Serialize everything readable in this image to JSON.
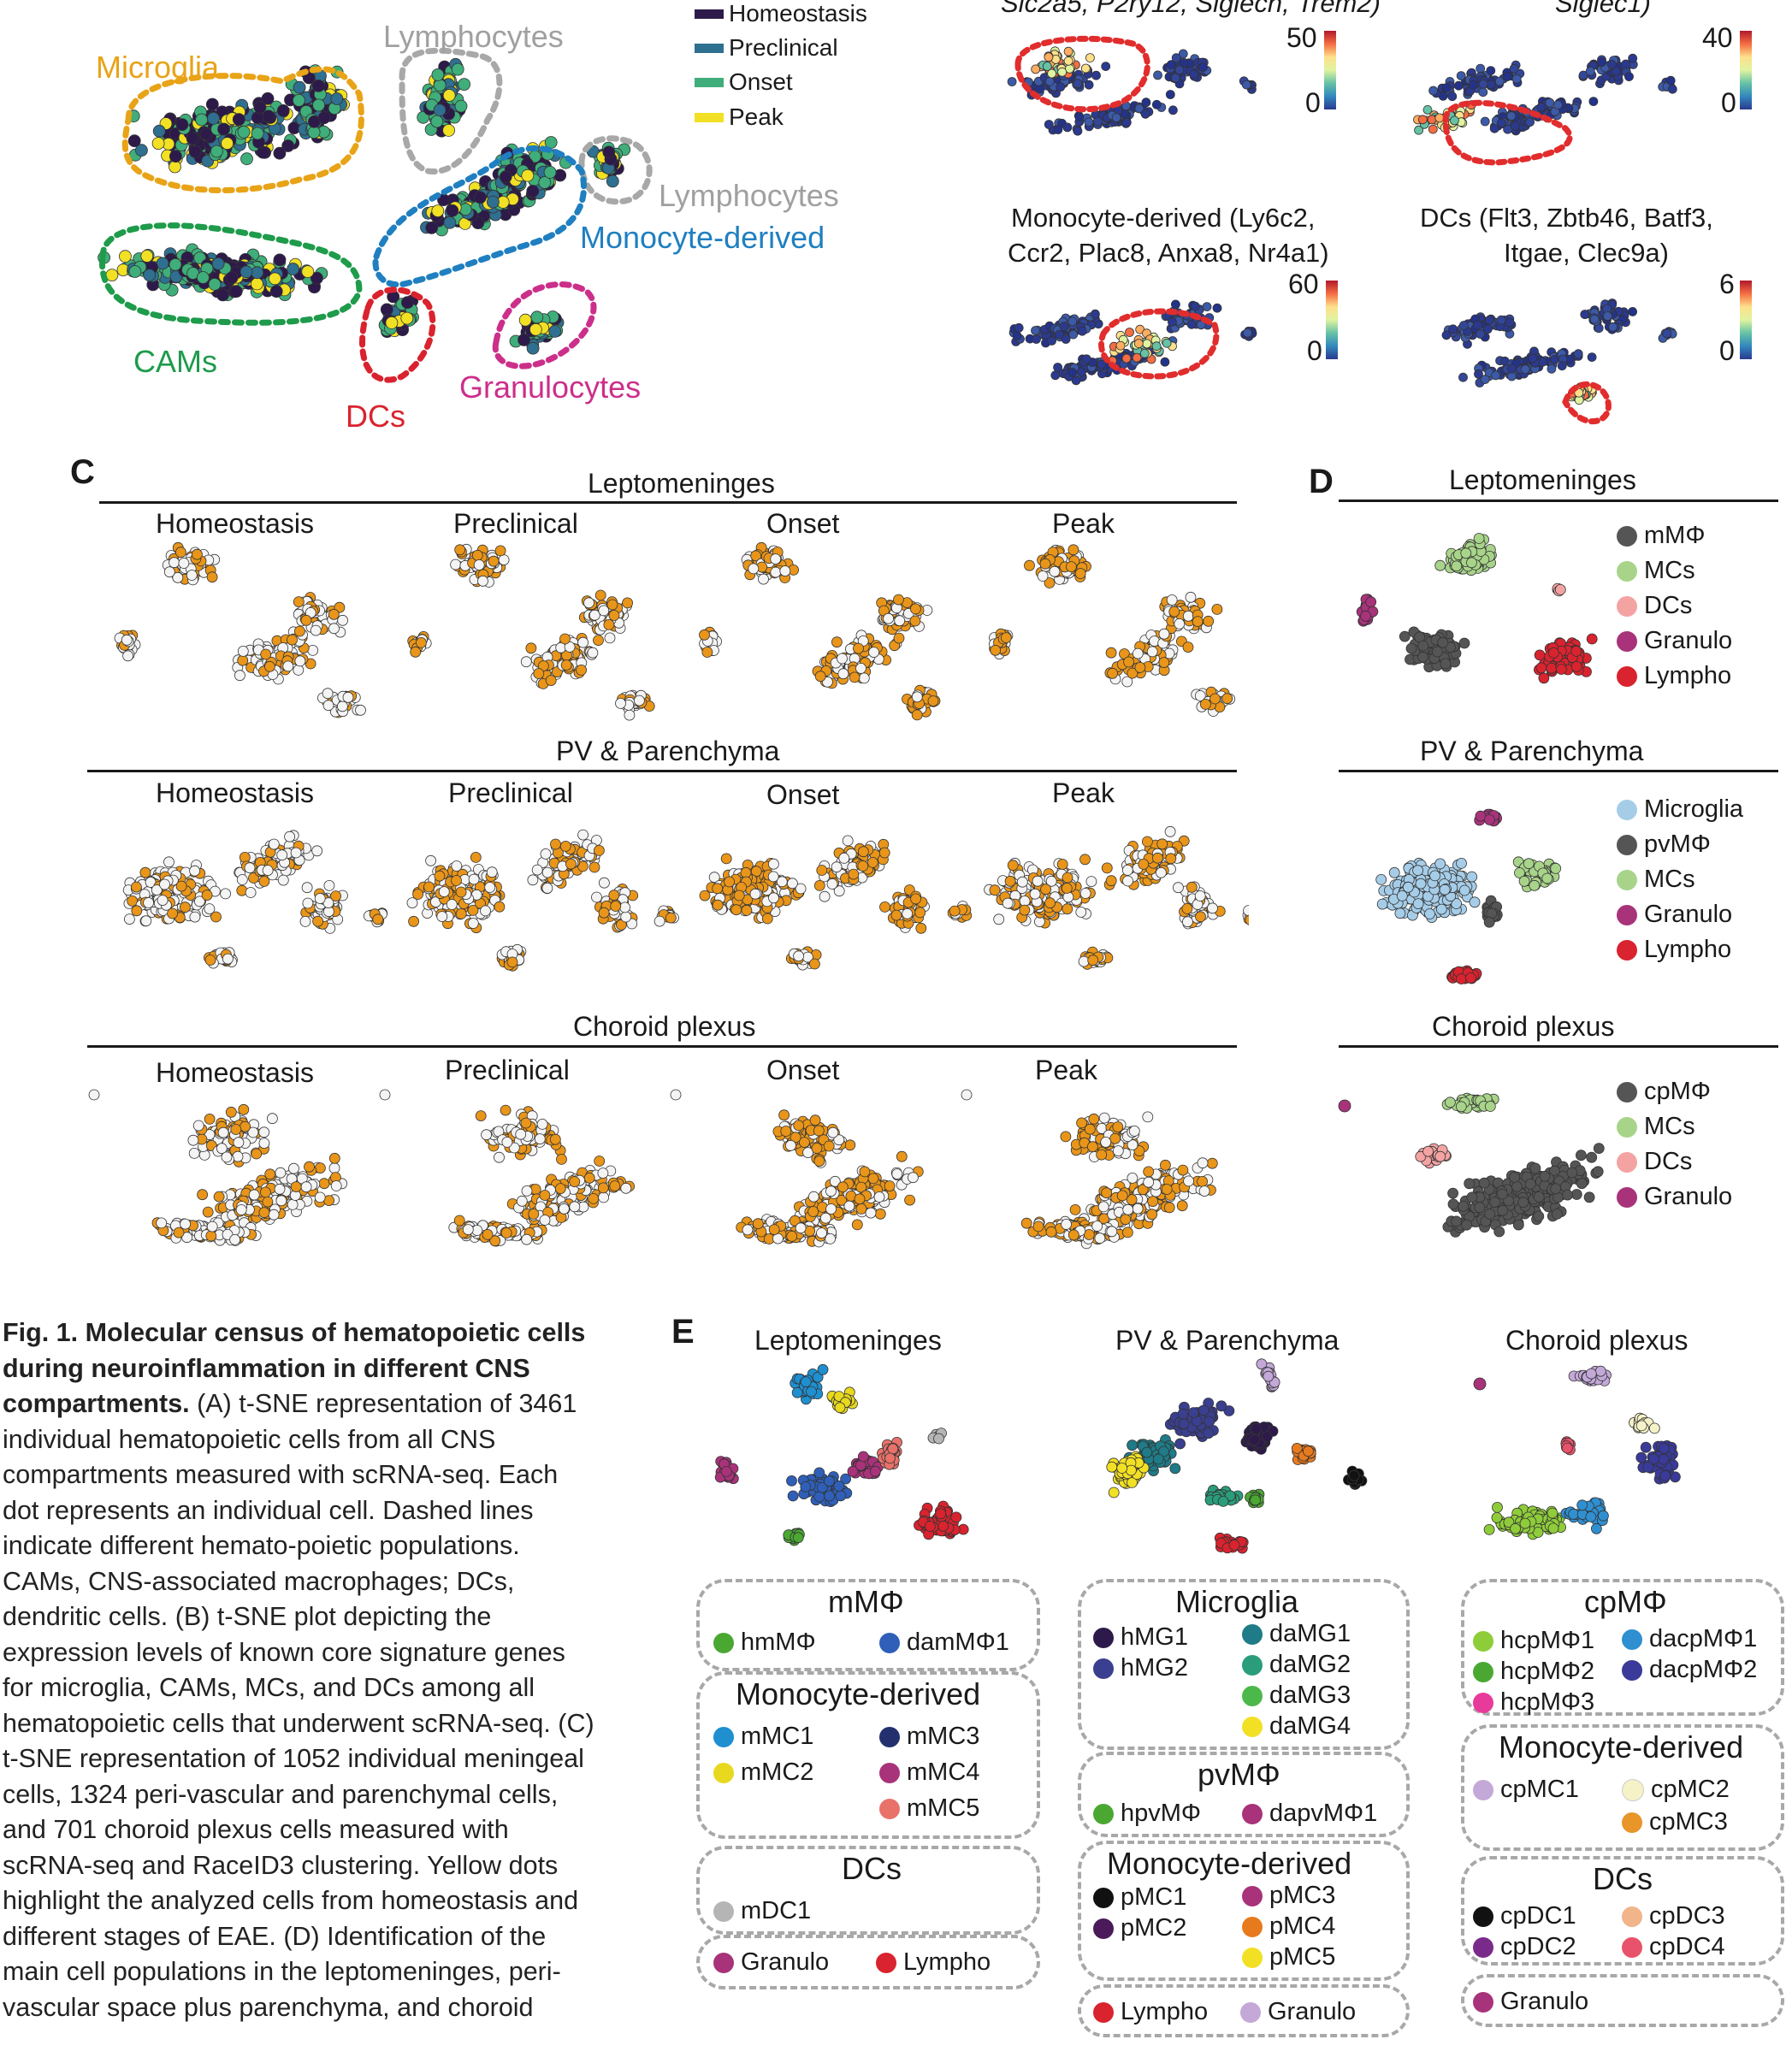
{
  "panelA": {
    "legend": [
      {
        "label": "Homeostasis",
        "color": "#2d1a4a"
      },
      {
        "label": "Preclinical",
        "color": "#2f6f8f"
      },
      {
        "label": "Onset",
        "color": "#3fae7a"
      },
      {
        "label": "Peak",
        "color": "#f2e024"
      }
    ],
    "populations": [
      {
        "key": "microglia",
        "label": "Microglia",
        "color": "#e8a317"
      },
      {
        "key": "lymph1",
        "label": "Lymphocytes",
        "color": "#a8a8a8"
      },
      {
        "key": "lymph2",
        "label": "Lymphocytes",
        "color": "#a8a8a8"
      },
      {
        "key": "mono",
        "label": "Monocyte-derived",
        "color": "#1f7fc0"
      },
      {
        "key": "cams",
        "label": "CAMs",
        "color": "#1e9b4b"
      },
      {
        "key": "dcs",
        "label": "DCs",
        "color": "#d9232e"
      },
      {
        "key": "granulo",
        "label": "Granulocytes",
        "color": "#cc2f8a"
      }
    ]
  },
  "panelB": {
    "top_left_title": "Slc2a5, P2ry12, Siglech, Trem2)",
    "top_right_title": "Siglec1)",
    "mono_title_1": "Monocyte-derived (Ly6c2,",
    "mono_title_2": "Ccr2, Plac8, Anxa8, Nr4a1)",
    "dcs_title_1": "DCs (Flt3, Zbtb46, Batf3,",
    "dcs_title_2": "Itgae, Clec9a)",
    "scale": {
      "tl_max": "50",
      "tl_min": "0",
      "tr_max": "40",
      "tr_min": "0",
      "bl_max": "60",
      "bl_min": "0",
      "br_max": "6",
      "br_min": "0"
    }
  },
  "panelC": {
    "letter": "C",
    "stages": [
      "Homeostasis",
      "Preclinical",
      "Onset",
      "Peak"
    ],
    "sections": [
      {
        "title": "Leptomeninges"
      },
      {
        "title": "PV & Parenchyma"
      },
      {
        "title": "Choroid plexus"
      }
    ],
    "highlight_color": "#e8951a"
  },
  "panelD": {
    "letter": "D",
    "sections": [
      {
        "title": "Leptomeninges",
        "legend": [
          {
            "label": "mMΦ",
            "color": "#555555"
          },
          {
            "label": "MCs",
            "color": "#a8d48a"
          },
          {
            "label": "DCs",
            "color": "#f4a3a3"
          },
          {
            "label": "Granulo",
            "color": "#a8337a"
          },
          {
            "label": "Lympho",
            "color": "#d9232e"
          }
        ]
      },
      {
        "title": "PV & Parenchyma",
        "legend": [
          {
            "label": "Microglia",
            "color": "#a6cde8"
          },
          {
            "label": "pvMΦ",
            "color": "#555555"
          },
          {
            "label": "MCs",
            "color": "#a8d48a"
          },
          {
            "label": "Granulo",
            "color": "#a8337a"
          },
          {
            "label": "Lympho",
            "color": "#d9232e"
          }
        ]
      },
      {
        "title": "Choroid plexus",
        "legend": [
          {
            "label": "cpMΦ",
            "color": "#555555"
          },
          {
            "label": "MCs",
            "color": "#a8d48a"
          },
          {
            "label": "DCs",
            "color": "#f4a3a3"
          },
          {
            "label": "Granulo",
            "color": "#a8337a"
          }
        ]
      }
    ]
  },
  "panelE": {
    "letter": "E",
    "titles": [
      "Leptomeninges",
      "PV & Parenchyma",
      "Choroid plexus"
    ],
    "lepto": {
      "mmphi": {
        "title": "mMΦ",
        "items": [
          {
            "label": "hmMΦ",
            "color": "#4aa832"
          },
          {
            "label": "damMΦ1",
            "color": "#2f5fb8"
          }
        ]
      },
      "mono": {
        "title": "Monocyte-derived",
        "items": [
          {
            "label": "mMC1",
            "color": "#1f8fd0"
          },
          {
            "label": "mMC3",
            "color": "#23306e"
          },
          {
            "label": "mMC2",
            "color": "#e8d81e"
          },
          {
            "label": "mMC4",
            "color": "#a8337a"
          },
          {
            "label": "mMC5",
            "color": "#e8726a"
          }
        ]
      },
      "dcs": {
        "title": "DCs",
        "items": [
          {
            "label": "mDC1",
            "color": "#b5b5b5"
          }
        ]
      },
      "other": {
        "items": [
          {
            "label": "Granulo",
            "color": "#a8337a"
          },
          {
            "label": "Lympho",
            "color": "#d9232e"
          }
        ]
      }
    },
    "pv": {
      "microglia": {
        "title": "Microglia",
        "items": [
          {
            "label": "hMG1",
            "color": "#2d1a4a"
          },
          {
            "label": "daMG1",
            "color": "#1e7b87"
          },
          {
            "label": "hMG2",
            "color": "#3a3f8f"
          },
          {
            "label": "daMG2",
            "color": "#2a9d7a"
          },
          {
            "label": "daMG3",
            "color": "#4cb84a"
          },
          {
            "label": "daMG4",
            "color": "#f2e024"
          }
        ]
      },
      "pvmphi": {
        "title": "pvMΦ",
        "items": [
          {
            "label": "hpvMΦ",
            "color": "#4aa832"
          },
          {
            "label": "dapvMΦ1",
            "color": "#a8337a"
          }
        ]
      },
      "mono": {
        "title": "Monocyte-derived",
        "items": [
          {
            "label": "pMC1",
            "color": "#111111"
          },
          {
            "label": "pMC3",
            "color": "#a8337a"
          },
          {
            "label": "pMC2",
            "color": "#4a1a5a"
          },
          {
            "label": "pMC4",
            "color": "#e87a1e"
          },
          {
            "label": "pMC5",
            "color": "#f2e024"
          }
        ]
      },
      "other": {
        "items": [
          {
            "label": "Lympho",
            "color": "#d9232e"
          },
          {
            "label": "Granulo",
            "color": "#c3a8d8"
          }
        ]
      }
    },
    "cp": {
      "cpmphi": {
        "title": "cpMΦ",
        "items": [
          {
            "label": "hcpMΦ1",
            "color": "#8fcc3a"
          },
          {
            "label": "dacpMΦ1",
            "color": "#2f8fd0"
          },
          {
            "label": "hcpMΦ2",
            "color": "#4aa832"
          },
          {
            "label": "dacpMΦ2",
            "color": "#3a3a9a"
          },
          {
            "label": "hcpMΦ3",
            "color": "#e83a9a"
          }
        ]
      },
      "mono": {
        "title": "Monocyte-derived",
        "items": [
          {
            "label": "cpMC1",
            "color": "#c3a8d8"
          },
          {
            "label": "cpMC2",
            "color": "#f6f2c8"
          },
          {
            "label": "cpMC3",
            "color": "#e8952a"
          }
        ]
      },
      "dcs": {
        "title": "DCs",
        "items": [
          {
            "label": "cpDC1",
            "color": "#111111"
          },
          {
            "label": "cpDC3",
            "color": "#f2b48a"
          },
          {
            "label": "cpDC2",
            "color": "#7a2a8a"
          },
          {
            "label": "cpDC4",
            "color": "#e8526a"
          }
        ]
      },
      "other": {
        "items": [
          {
            "label": "Granulo",
            "color": "#a8337a"
          }
        ]
      }
    }
  },
  "caption": {
    "fig": "Fig. 1.",
    "bold": "Molecular census of hematopoietic cells during neuroinflammation in different CNS compartments.",
    "body": "(A) t-SNE representation of 3461 individual hematopoietic cells from all CNS compartments measured with scRNA-seq. Each dot represents an individual cell. Dashed lines indicate different hemato-poietic populations. CAMs, CNS-associated macrophages; DCs, dendritic cells. (B) t-SNE plot depicting the expression levels of known core signature genes for microglia, CAMs, MCs, and DCs among all hematopoietic cells that underwent scRNA-seq. (C) t-SNE representation of 1052 individual meningeal cells, 1324 peri-vascular and parenchymal cells, and 701 choroid plexus cells measured with scRNA-seq and RaceID3 clustering. Yellow dots highlight the analyzed cells from homeostasis and different stages of EAE. (D) Identification of the main cell populations in the leptomeninges, peri-vascular space plus parenchyma, and choroid"
  }
}
